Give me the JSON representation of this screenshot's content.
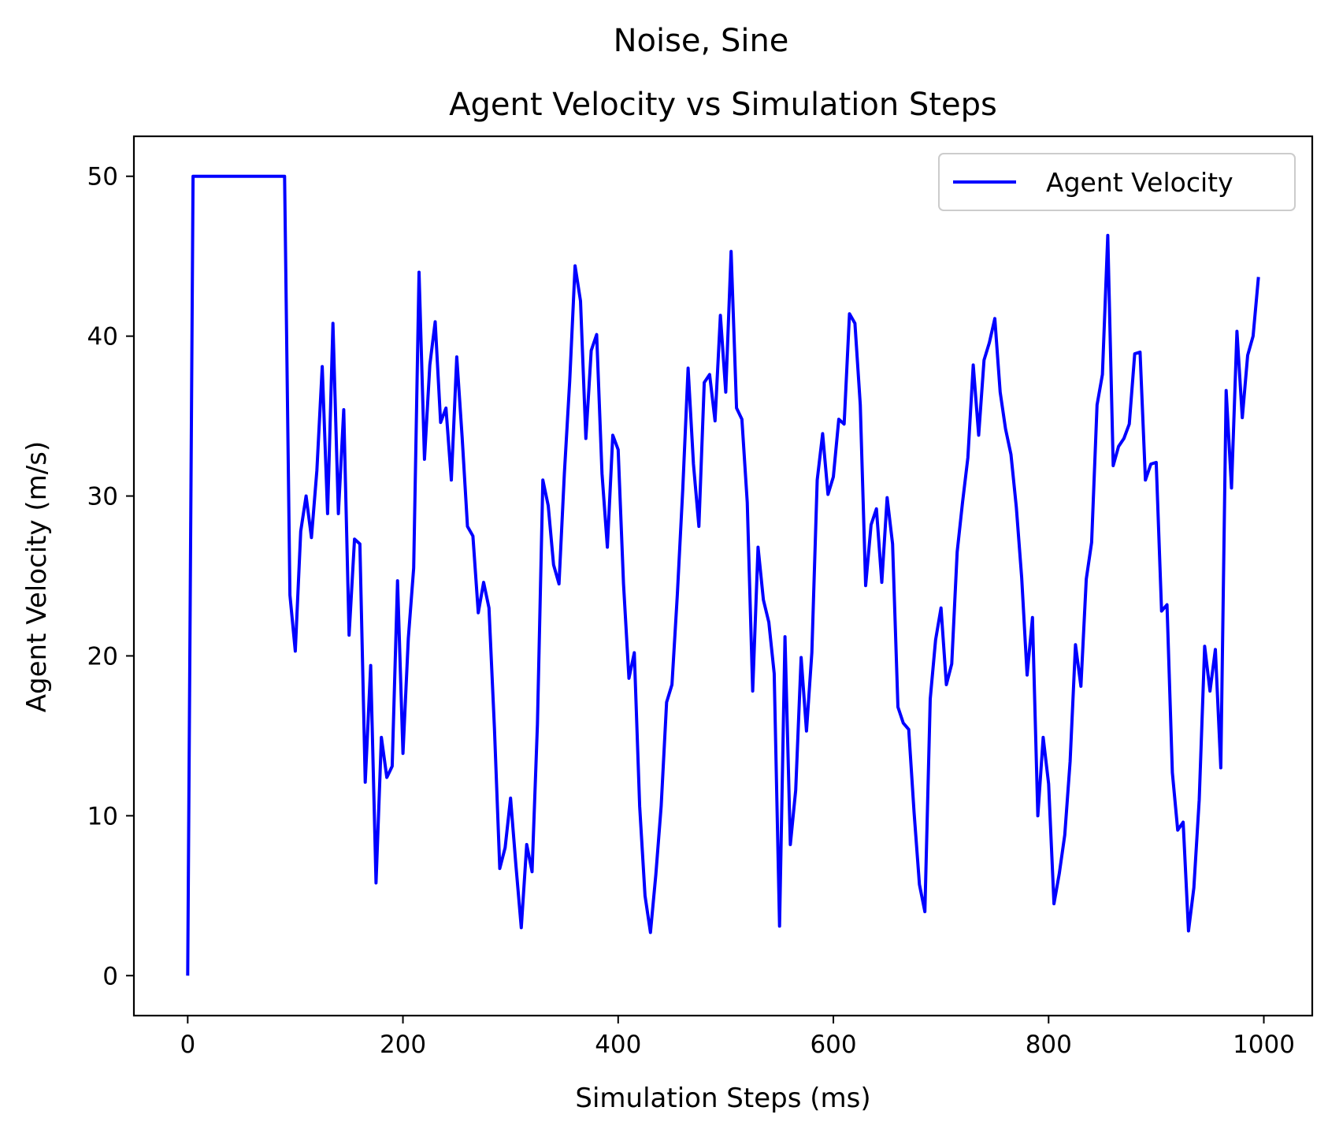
{
  "chart_data": {
    "type": "line",
    "suptitle": "Noise, Sine",
    "title": "Agent Velocity vs Simulation Steps",
    "xlabel": "Simulation Steps (ms)",
    "ylabel": "Agent Velocity (m/s)",
    "xlim": [
      -50,
      1045
    ],
    "ylim": [
      -2.5,
      52.5
    ],
    "xticks": [
      0,
      200,
      400,
      600,
      800,
      1000
    ],
    "yticks": [
      0,
      10,
      20,
      30,
      40,
      50
    ],
    "xtick_labels": [
      "0",
      "200",
      "400",
      "600",
      "800",
      "1000"
    ],
    "ytick_labels": [
      "0",
      "10",
      "20",
      "30",
      "40",
      "50"
    ],
    "grid": false,
    "legend_position": "top-right",
    "series": [
      {
        "name": "Agent Velocity",
        "color": "#0000ff",
        "x": [
          0,
          5,
          10,
          15,
          20,
          25,
          30,
          35,
          40,
          45,
          50,
          55,
          60,
          65,
          70,
          75,
          80,
          85,
          90,
          95,
          100,
          105,
          110,
          115,
          120,
          125,
          130,
          135,
          140,
          145,
          150,
          155,
          160,
          165,
          170,
          175,
          180,
          185,
          190,
          195,
          200,
          205,
          210,
          215,
          220,
          225,
          230,
          235,
          240,
          245,
          250,
          255,
          260,
          265,
          270,
          275,
          280,
          285,
          290,
          295,
          300,
          305,
          310,
          315,
          320,
          325,
          330,
          335,
          340,
          345,
          350,
          355,
          360,
          365,
          370,
          375,
          380,
          385,
          390,
          395,
          400,
          405,
          410,
          415,
          420,
          425,
          430,
          435,
          440,
          445,
          450,
          455,
          460,
          465,
          470,
          475,
          480,
          485,
          490,
          495,
          500,
          505,
          510,
          515,
          520,
          525,
          530,
          535,
          540,
          545,
          550,
          555,
          560,
          565,
          570,
          575,
          580,
          585,
          590,
          595,
          600,
          605,
          610,
          615,
          620,
          625,
          630,
          635,
          640,
          645,
          650,
          655,
          660,
          665,
          670,
          675,
          680,
          685,
          690,
          695,
          700,
          705,
          710,
          715,
          720,
          725,
          730,
          735,
          740,
          745,
          750,
          755,
          760,
          765,
          770,
          775,
          780,
          785,
          790,
          795,
          800,
          805,
          810,
          815,
          820,
          825,
          830,
          835,
          840,
          845,
          850,
          855,
          860,
          865,
          870,
          875,
          880,
          885,
          890,
          895,
          900,
          905,
          910,
          915,
          920,
          925,
          930,
          935,
          940,
          945,
          950,
          955,
          960,
          965,
          970,
          975,
          980,
          985,
          990,
          995
        ],
        "y": [
          0,
          50,
          50,
          50,
          50,
          50,
          50,
          50,
          50,
          50,
          50,
          50,
          50,
          50,
          50,
          50,
          50,
          50,
          50,
          23.8,
          20.3,
          27.8,
          30.0,
          27.4,
          31.6,
          38.1,
          28.9,
          40.8,
          28.9,
          35.4,
          21.3,
          27.3,
          27.0,
          12.1,
          19.4,
          5.8,
          14.9,
          12.4,
          13.1,
          24.7,
          13.9,
          21.1,
          25.5,
          44.0,
          32.3,
          38.2,
          40.9,
          34.6,
          35.5,
          31.0,
          38.7,
          33.7,
          28.1,
          27.5,
          22.7,
          24.6,
          23.0,
          15.5,
          6.7,
          8.0,
          11.1,
          6.9,
          3.0,
          8.2,
          6.5,
          15.7,
          31.0,
          29.4,
          25.7,
          24.5,
          31.4,
          37.2,
          44.4,
          42.2,
          33.6,
          39.1,
          40.1,
          31.4,
          26.8,
          33.8,
          32.9,
          24.5,
          18.6,
          20.2,
          10.6,
          5.0,
          2.7,
          6.3,
          10.6,
          17.1,
          18.2,
          23.8,
          30.4,
          38.0,
          32.0,
          28.1,
          37.1,
          37.6,
          34.7,
          41.3,
          36.5,
          45.3,
          35.5,
          34.8,
          29.6,
          17.8,
          26.8,
          23.5,
          22.1,
          18.9,
          3.1,
          21.2,
          8.2,
          11.6,
          19.9,
          15.3,
          20.2,
          31.0,
          33.9,
          30.1,
          31.2,
          34.8,
          34.5,
          41.4,
          40.8,
          35.7,
          24.4,
          28.2,
          29.2,
          24.6,
          29.9,
          27.0,
          16.8,
          15.8,
          15.4,
          10.2,
          5.7,
          4.0,
          17.3,
          21.0,
          23.0,
          18.2,
          19.5,
          26.5,
          29.6,
          32.4,
          38.2,
          33.8,
          38.5,
          39.6,
          41.1,
          36.5,
          34.2,
          32.6,
          29.3,
          24.9,
          18.8,
          22.4,
          10.0,
          14.9,
          12.0,
          4.5,
          6.4,
          8.8,
          13.4,
          20.7,
          18.1,
          24.8,
          27.1,
          35.7,
          37.6,
          46.3,
          31.9,
          33.1,
          33.6,
          34.5,
          38.9,
          39.0,
          31.0,
          32.0,
          32.1,
          22.8,
          23.2,
          12.7,
          9.1,
          9.6,
          2.8,
          5.5,
          11.0,
          20.6,
          17.8,
          20.4,
          13.0,
          36.6,
          30.5,
          40.3,
          34.9,
          38.8,
          40.0,
          43.7
        ]
      }
    ]
  }
}
